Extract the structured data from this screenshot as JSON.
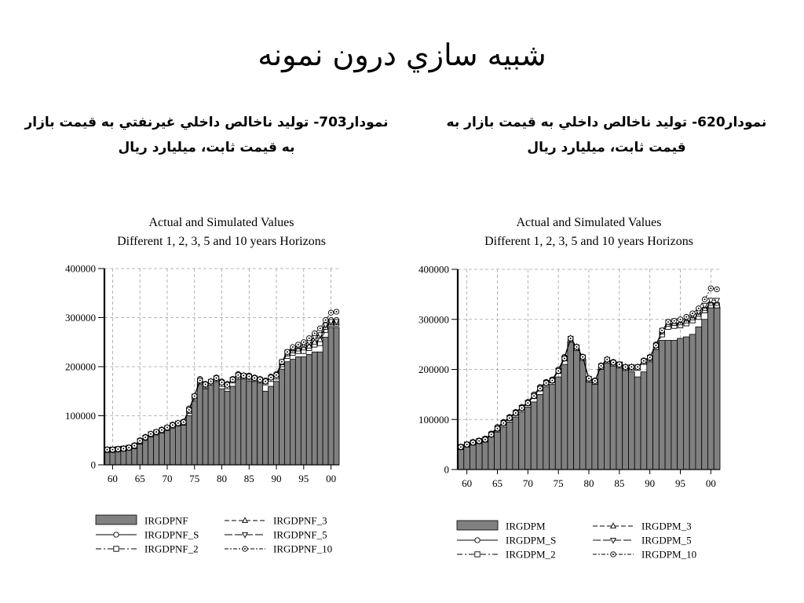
{
  "slide": {
    "title": "شبيه سازي درون نمونه",
    "left_caption_line1": "نمودار703- توليد ناخالص داخلي غيرنفتي به قيمت بازار",
    "left_caption_line2": "به قيمت ثابت، ميليارد ريال",
    "right_caption_line1": "نمودار620- توليد ناخالص داخلي به قيمت بازار به",
    "right_caption_line2": "قيمت ثابت، ميليارد ريال"
  },
  "colors": {
    "bar_fill": "#808080",
    "bar_stroke": "#000000",
    "grid": "#a0a0a0",
    "line": "#000000"
  },
  "chart_data": [
    {
      "type": "bar",
      "title_line1": "Actual and Simulated Values",
      "title_line2": "Different 1, 2, 3, 5 and 10 years Horizons",
      "x_start_year": 1959,
      "x_tick_labels": [
        "60",
        "65",
        "70",
        "75",
        "80",
        "85",
        "90",
        "95",
        "00"
      ],
      "x_tick_years": [
        1960,
        1965,
        1970,
        1975,
        1980,
        1985,
        1990,
        1995,
        2000
      ],
      "ylim": [
        0,
        400000
      ],
      "y_ticks": [
        0,
        100000,
        200000,
        300000,
        400000
      ],
      "y_tick_labels": [
        "0",
        "100000",
        "200000",
        "300000",
        "400000"
      ],
      "grid": true,
      "legend_placement": "bottom",
      "actual": {
        "name": "IRGDPNF",
        "values": [
          30000,
          30000,
          31000,
          32000,
          34000,
          37000,
          42000,
          50000,
          57000,
          62000,
          66000,
          70000,
          76000,
          82000,
          83000,
          100000,
          130000,
          165000,
          155000,
          165000,
          175000,
          155000,
          150000,
          160000,
          175000,
          180000,
          170000,
          175000,
          170000,
          150000,
          160000,
          170000,
          195000,
          210000,
          215000,
          220000,
          220000,
          225000,
          230000,
          230000,
          260000,
          280000,
          280000
        ]
      },
      "series": [
        {
          "name": "IRGDPNF_S",
          "marker": "circle",
          "values": [
            31000,
            30000,
            31000,
            33000,
            35000,
            40000,
            50000,
            57000,
            63000,
            67000,
            72000,
            76000,
            82000,
            85000,
            88000,
            115000,
            140000,
            175000,
            165000,
            170000,
            178000,
            170000,
            165000,
            175000,
            185000,
            182000,
            182000,
            178000,
            175000,
            172000,
            180000,
            185000,
            210000,
            230000,
            235000,
            240000,
            240000,
            245000,
            255000,
            262000,
            280000,
            295000,
            295000
          ]
        },
        {
          "name": "IRGDPNF_2",
          "marker": "square",
          "values": [
            30500,
            31000,
            32000,
            33000,
            35000,
            38000,
            48000,
            55000,
            62000,
            66000,
            70000,
            75000,
            80000,
            84000,
            86000,
            110000,
            138000,
            170000,
            162000,
            168000,
            175000,
            165000,
            160000,
            172000,
            180000,
            180000,
            178000,
            175000,
            172000,
            168000,
            175000,
            180000,
            205000,
            222000,
            228000,
            232000,
            232000,
            238000,
            245000,
            248000,
            275000,
            288000,
            288000
          ]
        },
        {
          "name": "IRGDPNF_3",
          "marker": "triangle-up",
          "values": [
            31000,
            31000,
            32000,
            33000,
            35000,
            39000,
            49000,
            56000,
            63000,
            67000,
            71000,
            76000,
            81000,
            85000,
            87000,
            112000,
            140000,
            172000,
            164000,
            170000,
            177000,
            168000,
            163000,
            174000,
            183000,
            182000,
            180000,
            177000,
            174000,
            170000,
            178000,
            183000,
            208000,
            226000,
            232000,
            236000,
            238000,
            242000,
            250000,
            255000,
            280000,
            290000,
            290000
          ]
        },
        {
          "name": "IRGDPNF_5",
          "marker": "triangle-down",
          "values": [
            31000,
            31000,
            32000,
            33000,
            35000,
            39000,
            49000,
            56000,
            63000,
            67000,
            71000,
            76000,
            81000,
            85000,
            87000,
            112000,
            140000,
            172000,
            164000,
            170000,
            177000,
            168000,
            163000,
            174000,
            183000,
            182000,
            180000,
            177000,
            174000,
            170000,
            178000,
            183000,
            210000,
            230000,
            237000,
            242000,
            245000,
            250000,
            260000,
            265000,
            285000,
            292000,
            292000
          ]
        },
        {
          "name": "IRGDPNF_10",
          "marker": "circle-dot",
          "values": [
            31000,
            31000,
            32000,
            33000,
            35000,
            39000,
            49000,
            56000,
            63000,
            67000,
            71000,
            76000,
            81000,
            85000,
            87000,
            112000,
            140000,
            172000,
            164000,
            170000,
            177000,
            168000,
            163000,
            174000,
            183000,
            182000,
            180000,
            177000,
            174000,
            170000,
            178000,
            183000,
            210000,
            230000,
            240000,
            245000,
            250000,
            258000,
            268000,
            278000,
            295000,
            310000,
            312000
          ]
        }
      ]
    },
    {
      "type": "bar",
      "title_line1": "Actual and Simulated Values",
      "title_line2": "Different 1, 2, 3, 5 and 10 years Horizons",
      "x_start_year": 1959,
      "x_tick_labels": [
        "60",
        "65",
        "70",
        "75",
        "80",
        "85",
        "90",
        "95",
        "00"
      ],
      "x_tick_years": [
        1960,
        1965,
        1970,
        1975,
        1980,
        1985,
        1990,
        1995,
        2000
      ],
      "ylim": [
        0,
        400000
      ],
      "y_ticks": [
        0,
        100000,
        200000,
        300000,
        400000
      ],
      "y_tick_labels": [
        "0",
        "100000",
        "200000",
        "300000",
        "400000"
      ],
      "grid": true,
      "legend_placement": "bottom",
      "actual": {
        "name": "IRGDPM",
        "values": [
          45000,
          50000,
          52000,
          55000,
          58000,
          65000,
          75000,
          85000,
          95000,
          105000,
          115000,
          125000,
          135000,
          150000,
          165000,
          170000,
          185000,
          210000,
          255000,
          240000,
          220000,
          175000,
          170000,
          200000,
          215000,
          210000,
          215000,
          205000,
          195000,
          185000,
          195000,
          215000,
          240000,
          258000,
          258000,
          258000,
          262000,
          265000,
          270000,
          285000,
          300000,
          325000,
          325000
        ]
      },
      "series": [
        {
          "name": "IRGDPM_S",
          "marker": "circle",
          "values": [
            45000,
            50000,
            55000,
            58000,
            62000,
            72000,
            85000,
            95000,
            105000,
            115000,
            125000,
            135000,
            150000,
            165000,
            175000,
            180000,
            200000,
            225000,
            262000,
            245000,
            225000,
            180000,
            178000,
            208000,
            220000,
            215000,
            210000,
            205000,
            205000,
            205000,
            218000,
            225000,
            250000,
            275000,
            290000,
            290000,
            290000,
            295000,
            300000,
            310000,
            320000,
            330000,
            330000
          ]
        },
        {
          "name": "IRGDPM_2",
          "marker": "square",
          "values": [
            45000,
            50000,
            54000,
            57000,
            60000,
            70000,
            82000,
            93000,
            103000,
            113000,
            123000,
            133000,
            147000,
            162000,
            173000,
            178000,
            197000,
            222000,
            260000,
            243000,
            223000,
            180000,
            175000,
            205000,
            218000,
            212000,
            208000,
            203000,
            203000,
            203000,
            215000,
            222000,
            245000,
            270000,
            285000,
            287000,
            288000,
            292000,
            298000,
            305000,
            318000,
            328000,
            328000
          ]
        },
        {
          "name": "IRGDPM_3",
          "marker": "triangle-up",
          "values": [
            45000,
            50000,
            54000,
            57000,
            60000,
            70000,
            82000,
            93000,
            103000,
            113000,
            123000,
            133000,
            147000,
            162000,
            173000,
            178000,
            197000,
            222000,
            262000,
            245000,
            225000,
            182000,
            177000,
            207000,
            220000,
            214000,
            210000,
            205000,
            205000,
            205000,
            217000,
            224000,
            248000,
            275000,
            290000,
            292000,
            293000,
            297000,
            303000,
            310000,
            322000,
            332000,
            332000
          ]
        },
        {
          "name": "IRGDPM_5",
          "marker": "triangle-down",
          "values": [
            45000,
            50000,
            54000,
            57000,
            60000,
            70000,
            82000,
            93000,
            103000,
            113000,
            123000,
            133000,
            147000,
            162000,
            173000,
            178000,
            197000,
            222000,
            262000,
            245000,
            225000,
            182000,
            177000,
            207000,
            220000,
            214000,
            210000,
            205000,
            205000,
            205000,
            217000,
            224000,
            248000,
            278000,
            295000,
            297000,
            298000,
            302000,
            308000,
            315000,
            328000,
            338000,
            338000
          ]
        },
        {
          "name": "IRGDPM_10",
          "marker": "circle-dot",
          "values": [
            45000,
            50000,
            54000,
            57000,
            60000,
            70000,
            82000,
            93000,
            103000,
            113000,
            123000,
            133000,
            147000,
            162000,
            173000,
            178000,
            197000,
            222000,
            262000,
            245000,
            225000,
            182000,
            177000,
            207000,
            220000,
            214000,
            210000,
            205000,
            205000,
            205000,
            217000,
            224000,
            248000,
            278000,
            295000,
            297000,
            300000,
            305000,
            312000,
            322000,
            340000,
            362000,
            360000
          ]
        }
      ]
    }
  ]
}
